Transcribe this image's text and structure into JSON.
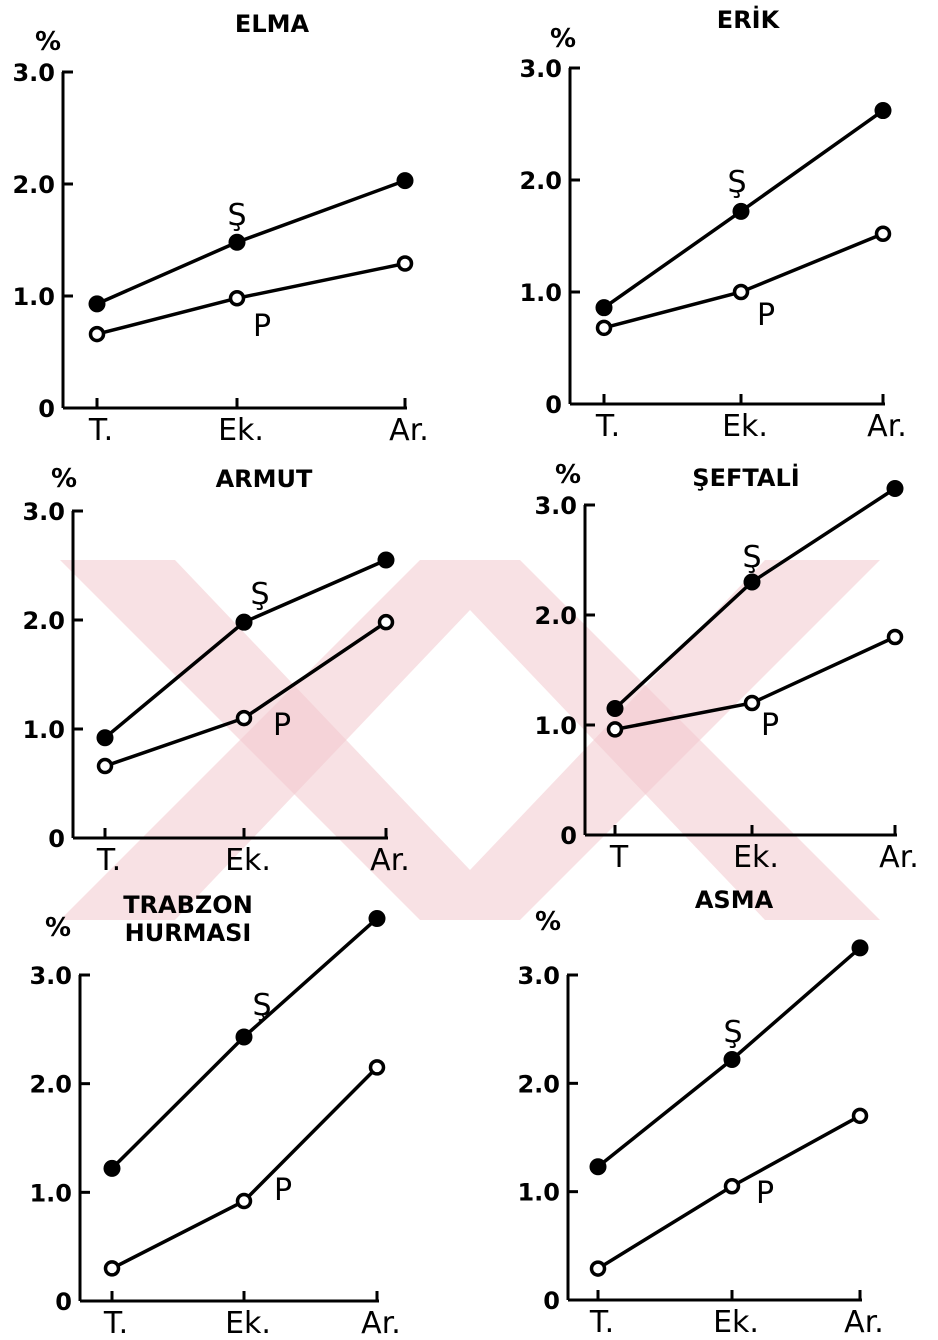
{
  "colors": {
    "ink": "#000000",
    "background": "#ffffff",
    "watermark": "#f2c9cd"
  },
  "chart_data": [
    {
      "type": "line",
      "title": [
        "ELMA"
      ],
      "ylabel": "%",
      "categories": [
        "T.",
        "Ek.",
        "Ar."
      ],
      "yticks": [
        "0",
        "1.0",
        "2.0",
        "3.0"
      ],
      "ylim": [
        0,
        3.0
      ],
      "series": [
        {
          "name": "Ş",
          "marker": "filled",
          "values": [
            0.93,
            1.48,
            2.03
          ]
        },
        {
          "name": "P",
          "marker": "open",
          "values": [
            0.66,
            0.98,
            1.29
          ]
        }
      ]
    },
    {
      "type": "line",
      "title": [
        "ERİK"
      ],
      "ylabel": "%",
      "categories": [
        "T.",
        "Ek.",
        "Ar."
      ],
      "yticks": [
        "0",
        "1.0",
        "2.0",
        "3.0"
      ],
      "ylim": [
        0,
        3.0
      ],
      "series": [
        {
          "name": "Ş",
          "marker": "filled",
          "values": [
            0.86,
            1.72,
            2.62
          ]
        },
        {
          "name": "P",
          "marker": "open",
          "values": [
            0.68,
            1.0,
            1.52
          ]
        }
      ]
    },
    {
      "type": "line",
      "title": [
        "ARMUT"
      ],
      "ylabel": "%",
      "categories": [
        "T.",
        "Ek.",
        "Ar."
      ],
      "yticks": [
        "0",
        "1.0",
        "2.0",
        "3.0"
      ],
      "ylim": [
        0,
        3.0
      ],
      "series": [
        {
          "name": "Ş",
          "marker": "filled",
          "values": [
            0.92,
            1.98,
            2.55
          ]
        },
        {
          "name": "P",
          "marker": "open",
          "values": [
            0.66,
            1.1,
            1.98
          ]
        }
      ]
    },
    {
      "type": "line",
      "title": [
        "ŞEFTALİ"
      ],
      "ylabel": "%",
      "categories": [
        "T",
        "Ek.",
        "Ar."
      ],
      "yticks": [
        "0",
        "1.0",
        "2.0",
        "3.0"
      ],
      "ylim": [
        0,
        3.0
      ],
      "series": [
        {
          "name": "Ş",
          "marker": "filled",
          "values": [
            1.15,
            2.3,
            3.15
          ]
        },
        {
          "name": "P",
          "marker": "open",
          "values": [
            0.96,
            1.2,
            1.8
          ]
        }
      ]
    },
    {
      "type": "line",
      "title": [
        "TRABZON",
        "HURMASI"
      ],
      "ylabel": "%",
      "categories": [
        "T.",
        "Ek.",
        "Ar."
      ],
      "yticks": [
        "0",
        "1.0",
        "2.0",
        "3.0"
      ],
      "ylim": [
        0,
        3.0
      ],
      "series": [
        {
          "name": "Ş",
          "marker": "filled",
          "values": [
            1.22,
            2.43,
            3.52
          ]
        },
        {
          "name": "P",
          "marker": "open",
          "values": [
            0.3,
            0.92,
            2.15
          ]
        }
      ]
    },
    {
      "type": "line",
      "title": [
        "ASMA"
      ],
      "ylabel": "%",
      "categories": [
        "T.",
        "Ek.",
        "Ar."
      ],
      "yticks": [
        "0",
        "1.0",
        "2.0",
        "3.0"
      ],
      "ylim": [
        0,
        3.0
      ],
      "series": [
        {
          "name": "Ş",
          "marker": "filled",
          "values": [
            1.23,
            2.22,
            3.25
          ]
        },
        {
          "name": "P",
          "marker": "open",
          "values": [
            0.29,
            1.05,
            1.7
          ]
        }
      ]
    }
  ]
}
